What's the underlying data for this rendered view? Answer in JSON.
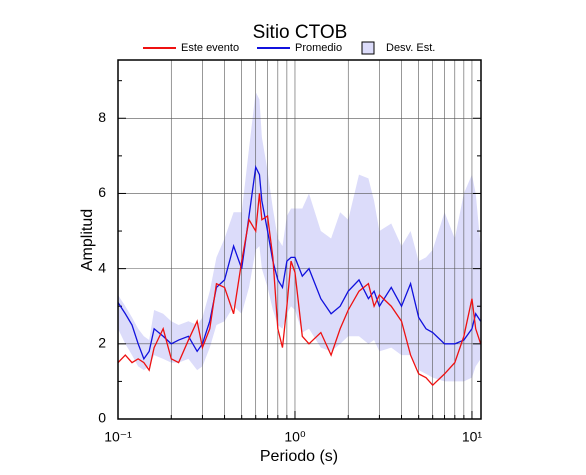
{
  "chart_data": {
    "type": "line",
    "title": "Sitio CTOB",
    "xlabel": "Periodo (s)",
    "ylabel": "Amplitud",
    "xscale": "log",
    "x": [
      0.1,
      0.11,
      0.12,
      0.13,
      0.14,
      0.15,
      0.16,
      0.18,
      0.2,
      0.22,
      0.25,
      0.28,
      0.3,
      0.33,
      0.36,
      0.4,
      0.45,
      0.5,
      0.55,
      0.6,
      0.63,
      0.65,
      0.7,
      0.75,
      0.8,
      0.85,
      0.9,
      0.95,
      1.0,
      1.1,
      1.2,
      1.4,
      1.6,
      1.8,
      2.0,
      2.3,
      2.6,
      2.8,
      3.0,
      3.5,
      4.0,
      4.5,
      5.0,
      5.5,
      6.0,
      7.0,
      8.0,
      9.0,
      10,
      10.5,
      11.2
    ],
    "xlim": [
      0.1,
      11.25
    ],
    "ylim": [
      0,
      9.55
    ],
    "xticks": [
      {
        "value": 0.1,
        "label": "10⁻¹"
      },
      {
        "value": 1,
        "label": "10⁰"
      },
      {
        "value": 10,
        "label": "10¹"
      }
    ],
    "xminor": [
      0.2,
      0.3,
      0.4,
      0.5,
      0.6,
      0.7,
      0.8,
      0.9,
      2,
      3,
      4,
      5,
      6,
      7,
      8,
      9
    ],
    "yticks": [
      0,
      2,
      4,
      6,
      8
    ],
    "yminor": [
      1,
      3,
      5,
      7,
      9
    ],
    "grid": true,
    "series": [
      {
        "name": "Este evento",
        "color": "#ee1111",
        "values": [
          1.5,
          1.7,
          1.5,
          1.6,
          1.5,
          1.3,
          1.9,
          2.4,
          1.6,
          1.5,
          2.1,
          2.6,
          1.9,
          2.4,
          3.6,
          3.5,
          2.8,
          4.2,
          5.3,
          5.0,
          6.0,
          5.3,
          5.4,
          4.3,
          2.4,
          1.9,
          3.0,
          4.2,
          3.9,
          2.2,
          2.0,
          2.3,
          1.7,
          2.4,
          2.9,
          3.4,
          3.6,
          3.0,
          3.3,
          3.0,
          2.6,
          1.7,
          1.2,
          1.1,
          0.9,
          1.2,
          1.5,
          2.2,
          3.2,
          2.4,
          2.0
        ]
      },
      {
        "name": "Promedio",
        "color": "#1111dd",
        "values": [
          3.1,
          2.8,
          2.5,
          2.0,
          1.6,
          1.8,
          2.4,
          2.2,
          2.0,
          2.1,
          2.2,
          1.8,
          2.0,
          2.6,
          3.5,
          3.7,
          4.6,
          4.0,
          5.4,
          6.7,
          6.5,
          5.8,
          5.0,
          4.2,
          3.7,
          3.5,
          4.2,
          4.3,
          4.3,
          3.8,
          4.0,
          3.2,
          2.8,
          3.0,
          3.4,
          3.7,
          3.2,
          3.4,
          3.0,
          3.5,
          3.0,
          3.6,
          2.7,
          2.4,
          2.3,
          2.0,
          2.0,
          2.1,
          2.4,
          2.8,
          2.6
        ]
      }
    ],
    "band": {
      "name": "Desv. Est.",
      "color": "#dcdcfa",
      "upper": [
        3.3,
        3.0,
        2.7,
        2.4,
        2.2,
        2.1,
        2.9,
        2.8,
        2.6,
        2.5,
        2.6,
        2.5,
        2.7,
        3.4,
        4.3,
        4.8,
        5.5,
        5.5,
        7.2,
        8.7,
        8.5,
        7.5,
        6.6,
        5.6,
        4.8,
        4.6,
        5.4,
        5.6,
        5.6,
        5.6,
        6.0,
        5.0,
        4.8,
        5.5,
        5.3,
        6.5,
        6.4,
        5.8,
        5.0,
        5.2,
        4.6,
        5.0,
        4.2,
        4.3,
        4.5,
        5.5,
        4.8,
        6.0,
        6.5,
        6.0,
        4.6
      ],
      "lower": [
        2.4,
        2.0,
        1.7,
        1.4,
        1.3,
        1.4,
        1.7,
        1.6,
        1.5,
        1.5,
        1.6,
        1.3,
        1.4,
        1.9,
        2.5,
        2.6,
        3.0,
        2.8,
        3.5,
        4.5,
        4.6,
        4.0,
        3.5,
        2.9,
        2.5,
        2.4,
        2.8,
        3.0,
        2.9,
        2.3,
        2.4,
        1.9,
        1.8,
        2.0,
        2.2,
        2.2,
        2.0,
        2.1,
        1.8,
        1.9,
        1.7,
        1.7,
        1.3,
        1.2,
        1.1,
        1.0,
        1.0,
        1.0,
        1.1,
        1.4,
        1.6
      ]
    }
  }
}
